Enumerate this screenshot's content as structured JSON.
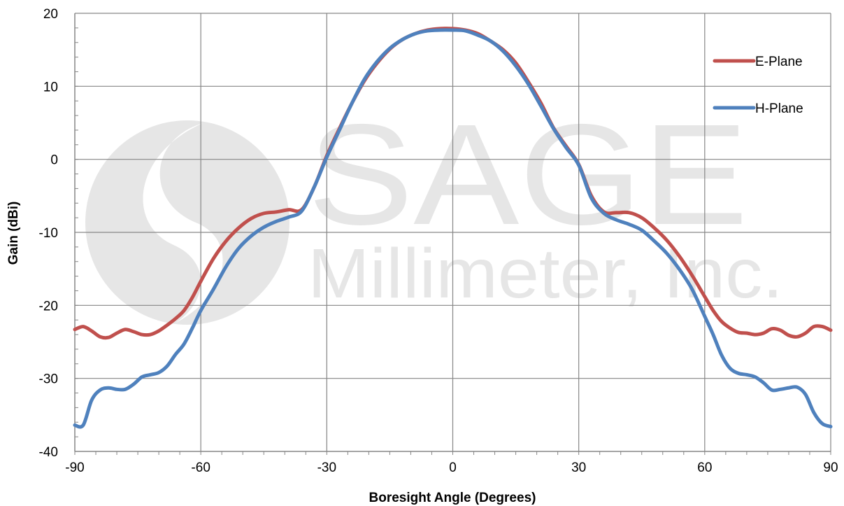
{
  "chart_data": {
    "type": "line",
    "title": "",
    "xlabel": "Boresight Angle (Degrees)",
    "ylabel": "Gain (dBi)",
    "xlim": [
      -90,
      90
    ],
    "ylim": [
      -40,
      20
    ],
    "xticks": [
      -90,
      -60,
      -30,
      0,
      30,
      60,
      90
    ],
    "yticks": [
      -40,
      -30,
      -20,
      -10,
      0,
      10,
      20
    ],
    "grid": true,
    "legend_position": "top-right",
    "watermark": {
      "line1": "SAGE",
      "line2": "Millimeter, Inc."
    },
    "series": [
      {
        "name": "E-Plane",
        "color": "#c0504d",
        "x": [
          -90,
          -88,
          -86,
          -84,
          -82,
          -80,
          -78,
          -76,
          -74,
          -72,
          -70,
          -68,
          -66,
          -64,
          -62,
          -60,
          -57,
          -54,
          -51,
          -48,
          -45,
          -42,
          -39,
          -36,
          -33,
          -30,
          -27,
          -24,
          -21,
          -18,
          -15,
          -12,
          -9,
          -6,
          -3,
          0,
          3,
          6,
          9,
          12,
          15,
          18,
          21,
          24,
          27,
          30,
          33,
          36,
          39,
          42,
          45,
          48,
          51,
          54,
          57,
          60,
          62,
          64,
          66,
          68,
          70,
          72,
          74,
          76,
          78,
          80,
          82,
          84,
          86,
          88,
          90
        ],
        "values": [
          -23.3,
          -22.9,
          -23.5,
          -24.3,
          -24.4,
          -23.8,
          -23.3,
          -23.6,
          -24.0,
          -24.0,
          -23.5,
          -22.7,
          -21.8,
          -20.7,
          -18.9,
          -16.7,
          -13.6,
          -11.2,
          -9.4,
          -8.1,
          -7.4,
          -7.2,
          -6.9,
          -6.9,
          -3.8,
          0.5,
          4.2,
          7.7,
          10.8,
          13.2,
          15.1,
          16.4,
          17.2,
          17.7,
          17.9,
          17.9,
          17.7,
          17.2,
          16.2,
          15.0,
          13.2,
          10.6,
          7.7,
          4.3,
          1.8,
          -0.7,
          -5.0,
          -7.2,
          -7.3,
          -7.3,
          -8.0,
          -9.4,
          -11.1,
          -13.3,
          -15.9,
          -18.8,
          -20.7,
          -22.2,
          -23.1,
          -23.7,
          -23.8,
          -24.0,
          -23.8,
          -23.2,
          -23.4,
          -24.1,
          -24.3,
          -23.8,
          -22.9,
          -22.9,
          -23.4
        ]
      },
      {
        "name": "H-Plane",
        "color": "#4f81bd",
        "x": [
          -90,
          -88,
          -86,
          -84,
          -82,
          -80,
          -78,
          -76,
          -74,
          -72,
          -70,
          -68,
          -66,
          -64,
          -62,
          -60,
          -57,
          -54,
          -51,
          -48,
          -45,
          -42,
          -39,
          -36,
          -33,
          -30,
          -27,
          -24,
          -21,
          -18,
          -15,
          -12,
          -9,
          -6,
          -3,
          0,
          3,
          6,
          9,
          12,
          15,
          18,
          21,
          24,
          27,
          30,
          33,
          36,
          39,
          42,
          45,
          48,
          51,
          54,
          57,
          60,
          62,
          64,
          66,
          68,
          70,
          72,
          74,
          76,
          78,
          80,
          82,
          84,
          86,
          88,
          90
        ],
        "values": [
          -36.4,
          -36.4,
          -33.0,
          -31.6,
          -31.3,
          -31.5,
          -31.5,
          -30.8,
          -29.8,
          -29.5,
          -29.2,
          -28.3,
          -26.7,
          -25.3,
          -23.1,
          -20.7,
          -17.8,
          -14.7,
          -12.2,
          -10.5,
          -9.3,
          -8.5,
          -7.9,
          -7.1,
          -3.8,
          0.3,
          4.0,
          7.7,
          11.0,
          13.4,
          15.2,
          16.4,
          17.2,
          17.6,
          17.7,
          17.7,
          17.6,
          17.0,
          16.2,
          14.8,
          12.8,
          10.3,
          7.3,
          4.2,
          1.6,
          -0.8,
          -5.3,
          -7.4,
          -8.3,
          -8.9,
          -9.7,
          -11.2,
          -12.9,
          -15.1,
          -17.8,
          -21.5,
          -24.0,
          -26.8,
          -28.6,
          -29.3,
          -29.5,
          -29.8,
          -30.6,
          -31.6,
          -31.5,
          -31.3,
          -31.2,
          -32.2,
          -34.7,
          -36.2,
          -36.6
        ]
      }
    ]
  }
}
